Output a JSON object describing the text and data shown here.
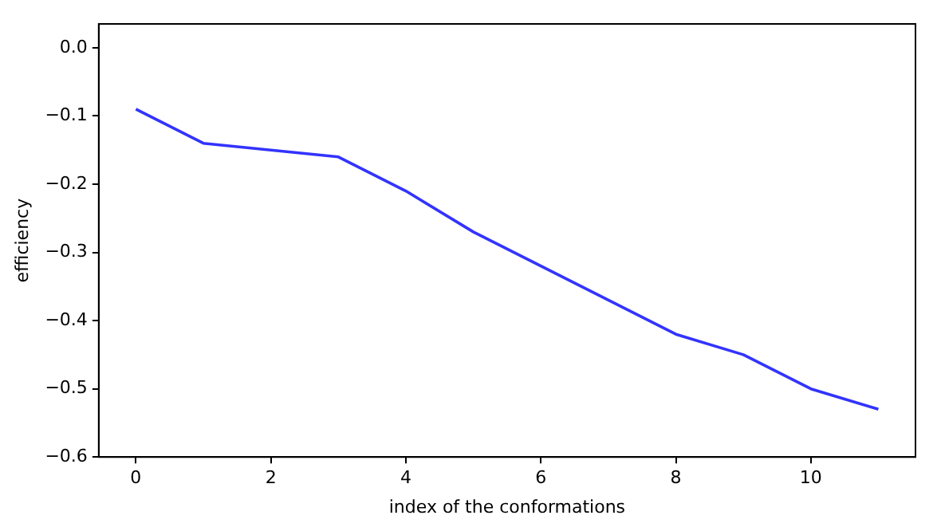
{
  "chart_data": {
    "type": "line",
    "xlabel": "index of the conformations",
    "ylabel": "efficiency",
    "x": [
      0,
      1,
      2,
      3,
      4,
      5,
      6,
      7,
      8,
      9,
      10,
      11
    ],
    "series": [
      {
        "color": "#3333ff",
        "values": [
          -0.09,
          -0.14,
          -0.15,
          -0.16,
          -0.21,
          -0.27,
          -0.32,
          -0.37,
          -0.42,
          -0.45,
          -0.5,
          -0.53
        ]
      }
    ],
    "xlim": [
      -0.55,
      11.55
    ],
    "xticks": [
      0,
      2,
      4,
      6,
      8,
      10
    ],
    "ylim": [
      -0.6,
      0.035
    ],
    "yticks": [
      {
        "value": -0.6,
        "label": "−0.6"
      },
      {
        "value": -0.5,
        "label": "−0.5"
      },
      {
        "value": -0.4,
        "label": "−0.4"
      },
      {
        "value": -0.3,
        "label": "−0.3"
      },
      {
        "value": -0.2,
        "label": "−0.2"
      },
      {
        "value": -0.1,
        "label": "−0.1"
      },
      {
        "value": 0,
        "label": "0.0"
      }
    ],
    "grid": false,
    "legend": false,
    "marker": "none",
    "line_style": "solid"
  }
}
